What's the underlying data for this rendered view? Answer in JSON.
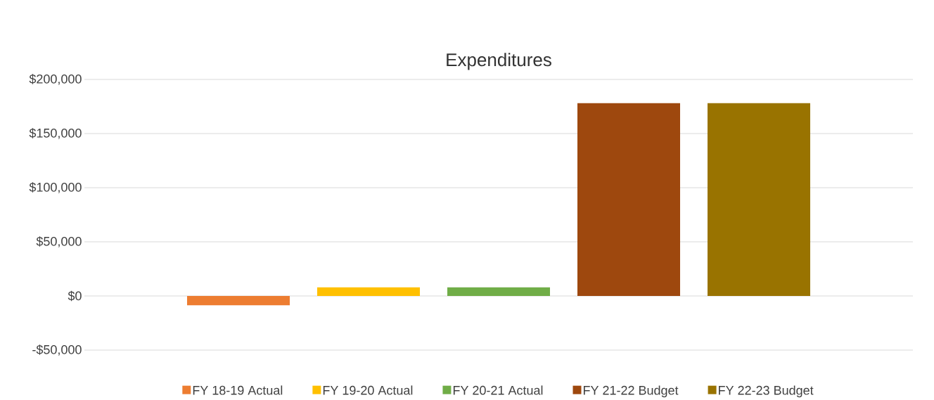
{
  "chart_data": {
    "type": "bar",
    "title": "Expenditures",
    "categories": [
      null
    ],
    "series": [
      {
        "name": "FY 18-19 Actual",
        "color": "#ed7d31",
        "values": [
          -8600
        ]
      },
      {
        "name": "FY 19-20 Actual",
        "color": "#ffc000",
        "values": [
          8000
        ]
      },
      {
        "name": "FY 20-21 Actual",
        "color": "#70ad47",
        "values": [
          8000
        ]
      },
      {
        "name": "FY 21-22 Budget",
        "color": "#9e480e",
        "values": [
          178000
        ]
      },
      {
        "name": "FY 22-23 Budget",
        "color": "#997300",
        "values": [
          178000
        ]
      }
    ],
    "ylim": [
      -50000,
      200000
    ],
    "yticks": [
      {
        "value": -50000,
        "label": "-$50,000"
      },
      {
        "value": 0,
        "label": "$0"
      },
      {
        "value": 50000,
        "label": "$50,000"
      },
      {
        "value": 100000,
        "label": "$100,000"
      },
      {
        "value": 150000,
        "label": "$150,000"
      },
      {
        "value": 200000,
        "label": "$200,000"
      }
    ],
    "grid": "y",
    "legend": "bottom"
  }
}
